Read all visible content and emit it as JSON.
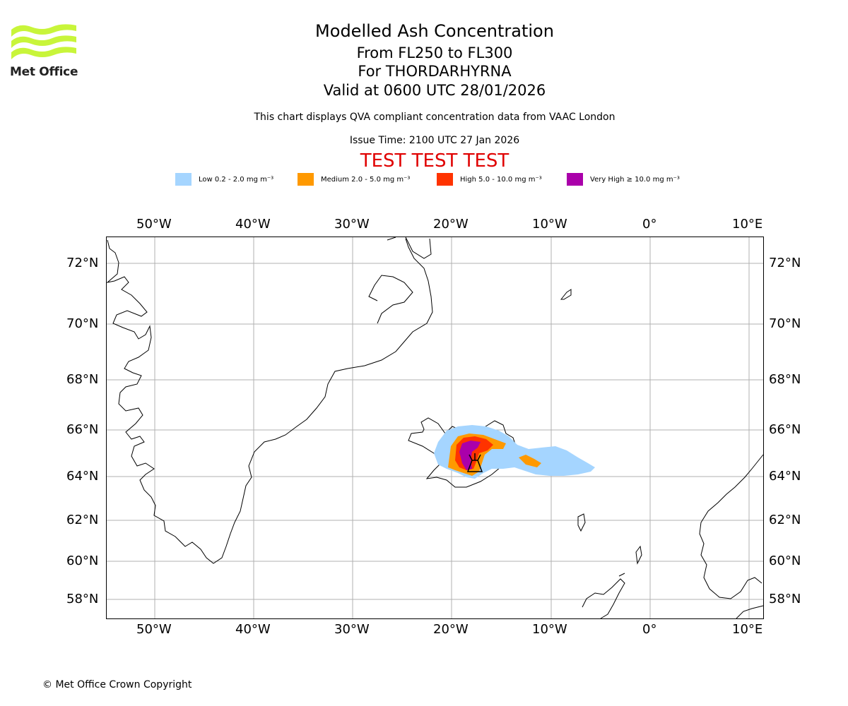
{
  "header": {
    "title": "Modelled Ash Concentration",
    "level_range": "From FL250 to FL300",
    "volcano": "For THORDARHYRNA",
    "valid_time": "Valid at 0600 UTC 28/01/2026",
    "description": "This chart displays QVA compliant concentration data from VAAC London",
    "issue_time": "Issue Time: 2100 UTC 27 Jan 2026",
    "test_banner": "TEST TEST TEST"
  },
  "logo": {
    "text": "Met Office",
    "color": "#c8f53a"
  },
  "legend": [
    {
      "label": "Low 0.2 - 2.0 mg m⁻³",
      "color": "#a5d5ff"
    },
    {
      "label": "Medium 2.0 - 5.0 mg m⁻³",
      "color": "#ff9900"
    },
    {
      "label": "High 5.0 - 10.0 mg m⁻³",
      "color": "#ff3300"
    },
    {
      "label": "Very High ≥ 10.0 mg m⁻³",
      "color": "#aa00aa"
    }
  ],
  "map": {
    "lon_ticks": [
      "50°W",
      "40°W",
      "30°W",
      "20°W",
      "10°W",
      "0°",
      "10°E"
    ],
    "lat_ticks": [
      "72°N",
      "70°N",
      "68°N",
      "66°N",
      "64°N",
      "62°N",
      "60°N",
      "58°N"
    ],
    "volcano_marker": "volcano-icon",
    "gridline_color": "#b0b0b0"
  },
  "footer": {
    "copyright": "© Met Office Crown Copyright"
  }
}
